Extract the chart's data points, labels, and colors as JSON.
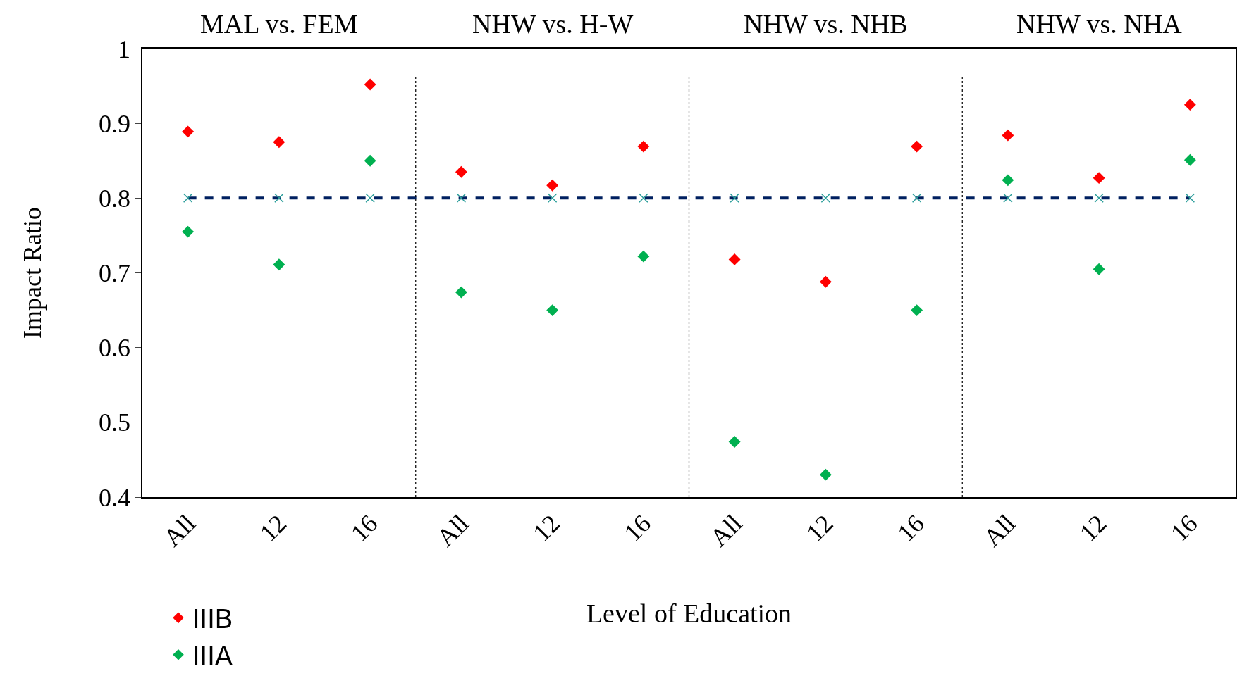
{
  "chart_data": {
    "type": "scatter",
    "xlabel": "Level of Education",
    "ylabel": "Impact Ratio",
    "categories": [
      "All",
      "12",
      "16",
      "All",
      "12",
      "16",
      "All",
      "12",
      "16",
      "All",
      "12",
      "16"
    ],
    "ylim": [
      0.4,
      1
    ],
    "yticks": [
      0.4,
      0.5,
      0.6,
      0.7,
      0.8,
      0.9,
      1
    ],
    "legend": "bottom left",
    "marker": "diamond",
    "series": [
      {
        "name": "IIIB",
        "color": "#ff0000",
        "values": [
          0.889,
          0.875,
          0.952,
          0.835,
          0.817,
          0.869,
          0.718,
          0.688,
          0.869,
          0.884,
          0.827,
          0.925
        ]
      },
      {
        "name": "IIIA",
        "color": "#00b050",
        "values": [
          0.755,
          0.711,
          0.85,
          0.674,
          0.65,
          0.722,
          0.474,
          0.43,
          0.65,
          0.824,
          0.705,
          0.851
        ]
      },
      {
        "type": "line",
        "color": "#002060",
        "marker": "cross",
        "line_style": "dashed",
        "values": [
          0.8,
          0.8,
          0.8,
          0.8,
          0.8,
          0.8,
          0.8,
          0.8,
          0.8,
          0.8,
          0.8,
          0.8
        ]
      }
    ],
    "annotations": [
      "MAL vs. FEM",
      "NHW vs. H-W",
      "NHW vs. NHB",
      "NHW vs. NHA"
    ]
  }
}
